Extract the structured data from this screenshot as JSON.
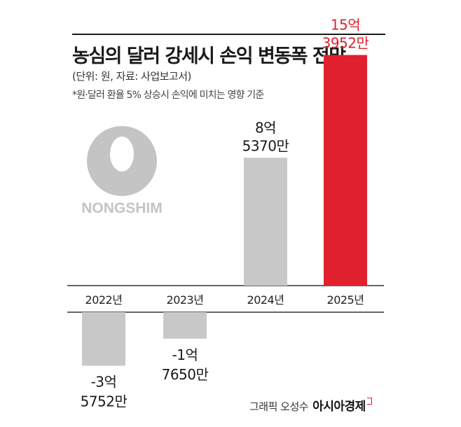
{
  "header": {
    "title": "농심의 달러 강세시 손익 변동폭 전망",
    "unit": "(단위: 원, 자료: 사업보고서)",
    "note": "*원·달러 환율 5% 상승시 손익에 미치는 영향 기준"
  },
  "logo": {
    "text": "NONGSHIM",
    "icon": "nongshim-logo"
  },
  "footer": {
    "credit": "그래픽 오성수",
    "brand": "아시아경제"
  },
  "chart_data": {
    "type": "bar",
    "categories": [
      "2022년",
      "2023년",
      "2024년",
      "2025년"
    ],
    "values": [
      -357520000,
      -176500000,
      853700000,
      1539520000
    ],
    "value_labels": [
      [
        "-3억",
        "5752만"
      ],
      [
        "-1억",
        "7650만"
      ],
      [
        "8억",
        "5370만"
      ],
      [
        "15억",
        "3952만"
      ]
    ],
    "colors": [
      "#c8c8c8",
      "#c8c8c8",
      "#c8c8c8",
      "#e0202e"
    ],
    "label_colors": [
      "#1a1a1a",
      "#1a1a1a",
      "#1a1a1a",
      "#e0202e"
    ]
  }
}
